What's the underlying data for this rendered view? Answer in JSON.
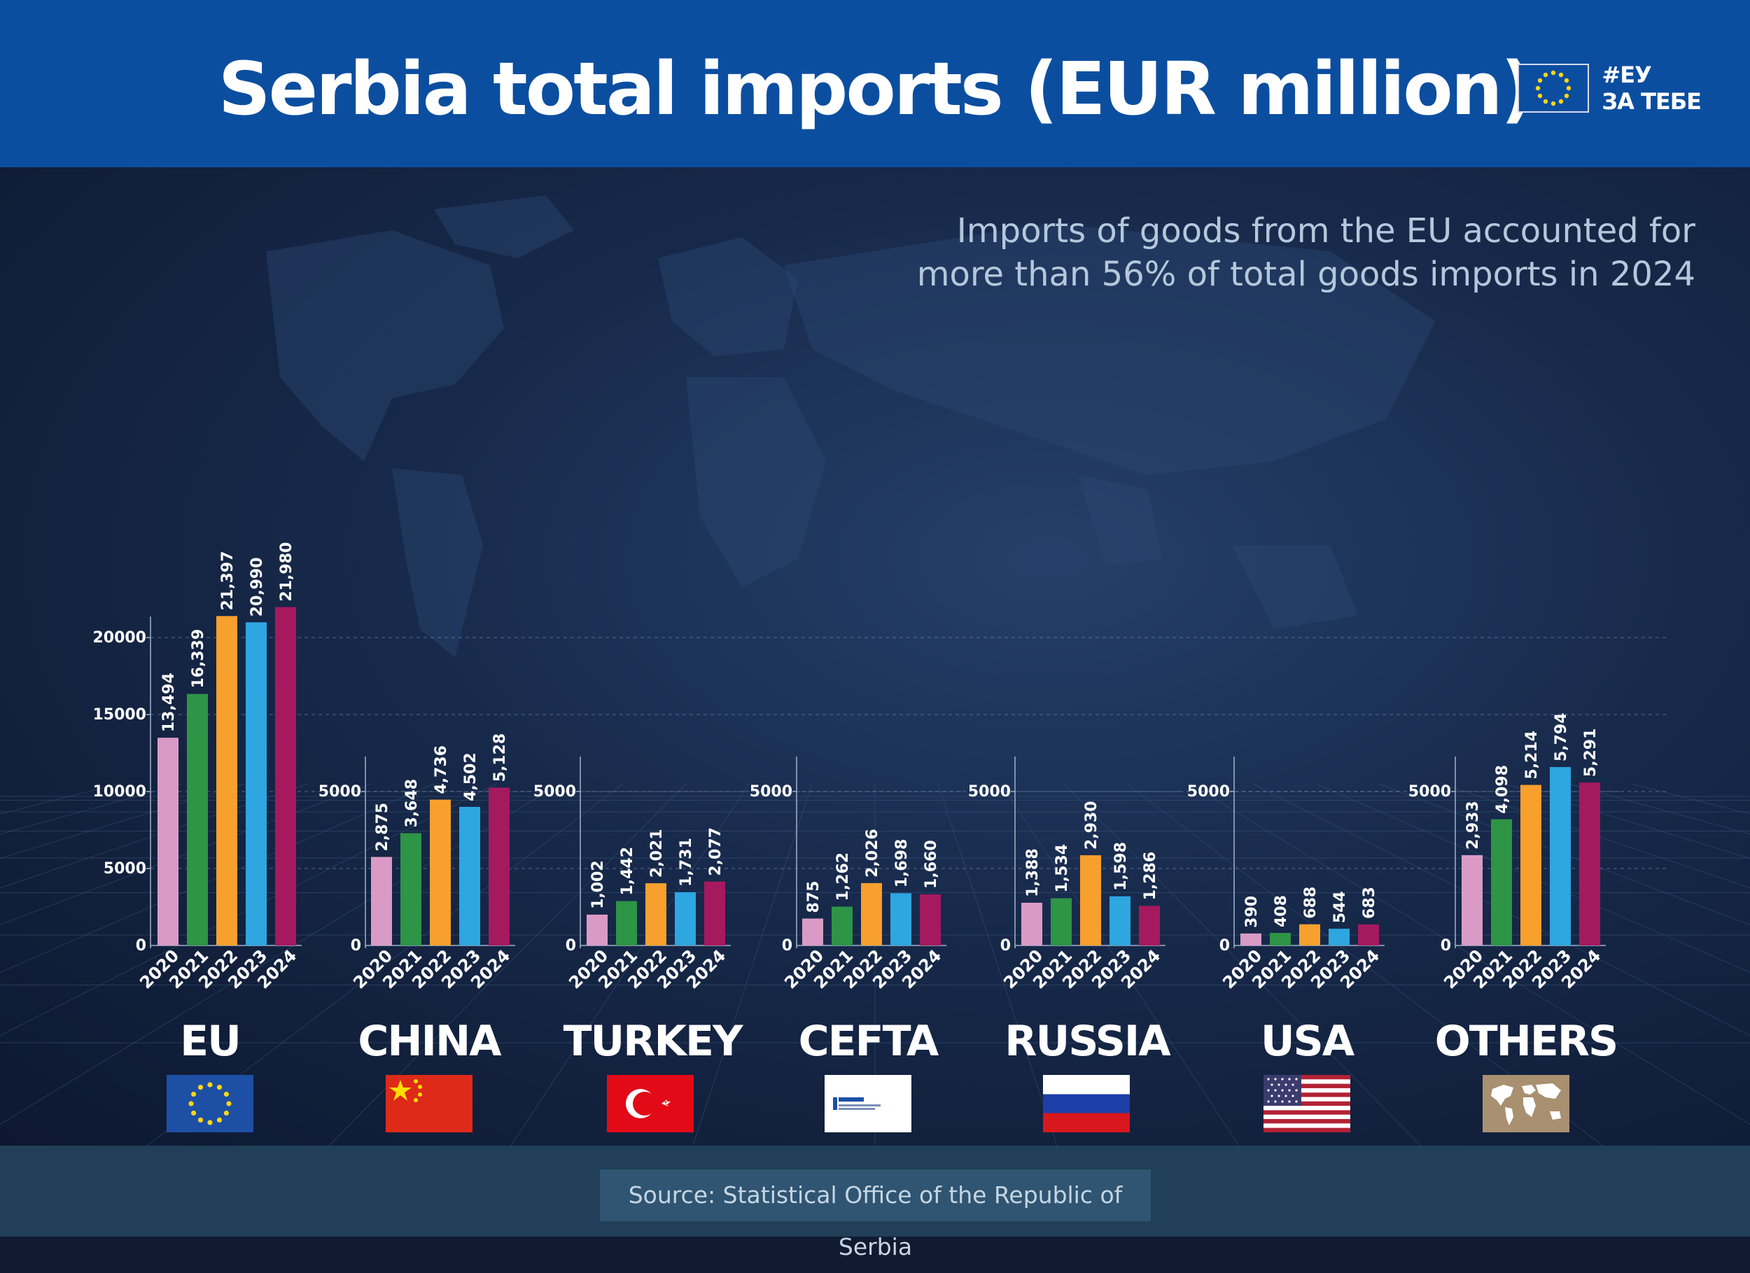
{
  "header": {
    "title": "Serbia total imports (EUR million)",
    "brand_hashtag_line1": "#ЕУ",
    "brand_hashtag_line2": "ЗА ТЕБЕ",
    "background_color": "#0b4ea0"
  },
  "subtitle": {
    "line1": "Imports of goods from the EU accounted for",
    "line2": "more than 56% of total goods imports in 2024"
  },
  "footer": {
    "source": "Source: Statistical Office of the Republic of Serbia"
  },
  "colors": {
    "2020": "#d99bc6",
    "2021": "#2e9446",
    "2022": "#f7a02d",
    "2023": "#2ea6e0",
    "2024": "#a5195f",
    "background": "#17294a",
    "footer": "#213f58"
  },
  "icons": {
    "brand": "eu-flag-icon",
    "eu": "eu-flag-icon",
    "china": "china-flag-icon",
    "turkey": "turkey-flag-icon",
    "cefta": "cefta-logo-icon",
    "russia": "russia-flag-icon",
    "usa": "usa-flag-icon",
    "others": "world-map-icon"
  },
  "chart_data": [
    {
      "type": "bar",
      "region": "EU",
      "flag": "eu-flag-icon",
      "categories": [
        "2020",
        "2021",
        "2022",
        "2023",
        "2024"
      ],
      "values": [
        13494,
        16339,
        21397,
        20990,
        21980
      ],
      "value_labels": [
        "13,494",
        "16,339",
        "21,397",
        "20,990",
        "21,980"
      ],
      "yticks": [
        "0",
        "5000",
        "10000",
        "15000",
        "20000"
      ],
      "ylim": [
        0,
        22000
      ],
      "grid": true
    },
    {
      "type": "bar",
      "region": "CHINA",
      "flag": "china-flag-icon",
      "categories": [
        "2020",
        "2021",
        "2022",
        "2023",
        "2024"
      ],
      "values": [
        2875,
        3648,
        4736,
        4502,
        5128
      ],
      "value_labels": [
        "2,875",
        "3,648",
        "4,736",
        "4,502",
        "5,128"
      ],
      "yticks": [
        "0",
        "5000"
      ],
      "ylim": [
        0,
        6000
      ],
      "grid": true
    },
    {
      "type": "bar",
      "region": "TURKEY",
      "flag": "turkey-flag-icon",
      "categories": [
        "2020",
        "2021",
        "2022",
        "2023",
        "2024"
      ],
      "values": [
        1002,
        1442,
        2021,
        1731,
        2077
      ],
      "value_labels": [
        "1,002",
        "1,442",
        "2,021",
        "1,731",
        "2,077"
      ],
      "yticks": [
        "0",
        "5000"
      ],
      "ylim": [
        0,
        6000
      ],
      "grid": true
    },
    {
      "type": "bar",
      "region": "CEFTA",
      "flag": "cefta-logo-icon",
      "categories": [
        "2020",
        "2021",
        "2022",
        "2023",
        "2024"
      ],
      "values": [
        875,
        1262,
        2026,
        1698,
        1660
      ],
      "value_labels": [
        "875",
        "1,262",
        "2,026",
        "1,698",
        "1,660"
      ],
      "yticks": [
        "0",
        "5000"
      ],
      "ylim": [
        0,
        6000
      ],
      "grid": true
    },
    {
      "type": "bar",
      "region": "RUSSIA",
      "flag": "russia-flag-icon",
      "categories": [
        "2020",
        "2021",
        "2022",
        "2023",
        "2024"
      ],
      "values": [
        1388,
        1534,
        2930,
        1598,
        1286
      ],
      "value_labels": [
        "1,388",
        "1,534",
        "2,930",
        "1,598",
        "1,286"
      ],
      "yticks": [
        "0",
        "5000"
      ],
      "ylim": [
        0,
        6000
      ],
      "grid": true
    },
    {
      "type": "bar",
      "region": "USA",
      "flag": "usa-flag-icon",
      "categories": [
        "2020",
        "2021",
        "2022",
        "2023",
        "2024"
      ],
      "values": [
        390,
        408,
        688,
        544,
        683
      ],
      "value_labels": [
        "390",
        "408",
        "688",
        "544",
        "683"
      ],
      "yticks": [
        "0",
        "5000"
      ],
      "ylim": [
        0,
        6000
      ],
      "grid": true
    },
    {
      "type": "bar",
      "region": "OTHERS",
      "flag": "world-map-icon",
      "categories": [
        "2020",
        "2021",
        "2022",
        "2023",
        "2024"
      ],
      "values": [
        2933,
        4098,
        5214,
        5794,
        5291
      ],
      "value_labels": [
        "2,933",
        "4,098",
        "5,214",
        "5,794",
        "5,291"
      ],
      "yticks": [
        "0",
        "5000"
      ],
      "ylim": [
        0,
        6000
      ],
      "grid": true
    }
  ]
}
